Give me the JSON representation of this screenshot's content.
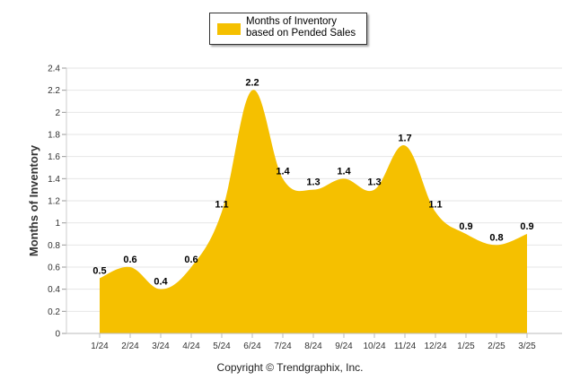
{
  "legend": {
    "label": "Months of Inventory based on Pended Sales",
    "color": "#F5C000"
  },
  "copyright": "Copyright © Trendgraphix, Inc.",
  "chart_data": {
    "type": "area",
    "categories": [
      "1/24",
      "2/24",
      "3/24",
      "4/24",
      "5/24",
      "6/24",
      "7/24",
      "8/24",
      "9/24",
      "10/24",
      "11/24",
      "12/24",
      "1/25",
      "2/25",
      "3/25"
    ],
    "series": [
      {
        "name": "Months of Inventory based on Pended Sales",
        "values": [
          0.5,
          0.6,
          0.4,
          0.6,
          1.1,
          2.2,
          1.4,
          1.3,
          1.4,
          1.3,
          1.7,
          1.1,
          0.9,
          0.8,
          0.9
        ]
      }
    ],
    "ylabel": "Months of Inventory",
    "xlabel": "",
    "ylim": [
      0,
      2.4
    ],
    "yticks": [
      "0",
      "0.2",
      "0.4",
      "0.6",
      "0.8",
      "1",
      "1.2",
      "1.4",
      "1.6",
      "1.8",
      "2",
      "2.2",
      "2.4"
    ],
    "data_labels": [
      "0.5",
      "0.6",
      "0.4",
      "0.6",
      "1.1",
      "2.2",
      "1.4",
      "1.3",
      "1.4",
      "1.3",
      "1.7",
      "1.1",
      "0.9",
      "0.8",
      "0.9"
    ],
    "grid": true,
    "legend_position": "top-center"
  }
}
